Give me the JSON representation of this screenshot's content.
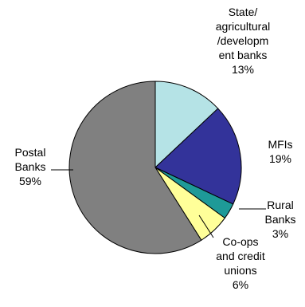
{
  "chart_data": {
    "type": "pie",
    "title": "",
    "slices": [
      {
        "label": "State/\nagricultural\n/developm\nent banks",
        "pct_label": "13%",
        "value": 13,
        "color": "#b5e3e6"
      },
      {
        "label": "MFIs",
        "pct_label": "19%",
        "value": 19,
        "color": "#33339a"
      },
      {
        "label": "Rural\nBanks",
        "pct_label": "3%",
        "value": 3,
        "color": "#1e9a98"
      },
      {
        "label": "Co-ops\nand credit\nunions",
        "pct_label": "6%",
        "value": 6,
        "color": "#ffff99"
      },
      {
        "label": "Postal\nBanks",
        "pct_label": "59%",
        "value": 59,
        "color": "#808080"
      }
    ]
  }
}
